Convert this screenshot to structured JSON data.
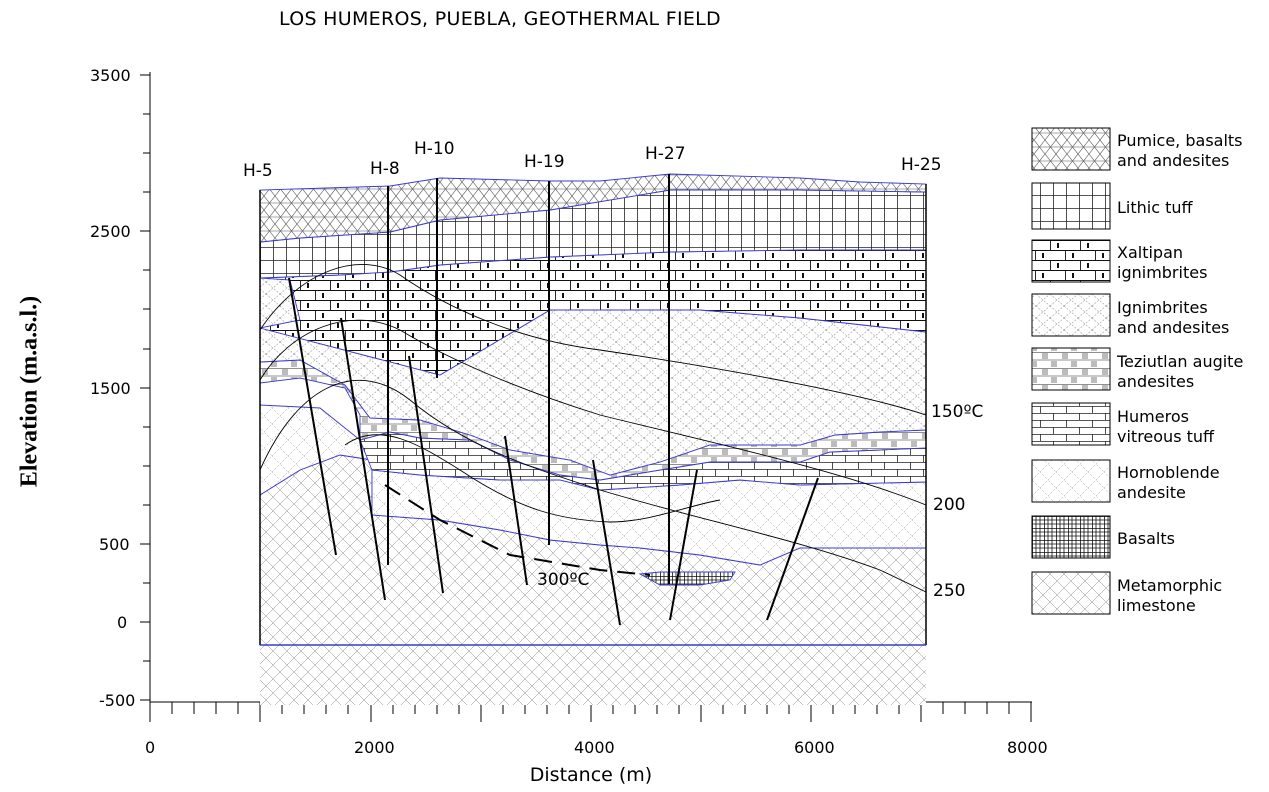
{
  "title": "LOS HUMEROS, PUEBLA, GEOTHERMAL FIELD",
  "x_axis": {
    "label": "Distance (m)",
    "ticks": [
      "0",
      "2000",
      "4000",
      "6000",
      "8000"
    ]
  },
  "y_axis": {
    "label": "Elevation (m.a.s.l.)",
    "ticks": [
      "3500",
      "2500",
      "1500",
      "500",
      "0",
      "-500"
    ]
  },
  "wells": [
    "H-5",
    "H-8",
    "H-10",
    "H-19",
    "H-27",
    "H-25"
  ],
  "isotherms": [
    "150ºC",
    "200",
    "250",
    "300ºC"
  ],
  "legend": [
    {
      "label_line1": "Pumice, basalts",
      "label_line2": "and andesites",
      "pattern": "pumice"
    },
    {
      "label_line1": "Lithic tuff",
      "label_line2": "",
      "pattern": "lithic"
    },
    {
      "label_line1": "Xaltipan",
      "label_line2": "ignimbrites",
      "pattern": "xaltipan"
    },
    {
      "label_line1": "Ignimbrites",
      "label_line2": "and andesites",
      "pattern": "ignim"
    },
    {
      "label_line1": "Teziutlan augite",
      "label_line2": "andesites",
      "pattern": "teziutlan"
    },
    {
      "label_line1": "Humeros",
      "label_line2": "vitreous tuff",
      "pattern": "brick"
    },
    {
      "label_line1": "Hornoblende",
      "label_line2": "andesite",
      "pattern": "diamond"
    },
    {
      "label_line1": "Basalts",
      "label_line2": "",
      "pattern": "basalt"
    },
    {
      "label_line1": "Metamorphic",
      "label_line2": "limestone",
      "pattern": "meta"
    }
  ],
  "colors": {
    "boundary": "#3a3ad0",
    "line": "#000000"
  }
}
